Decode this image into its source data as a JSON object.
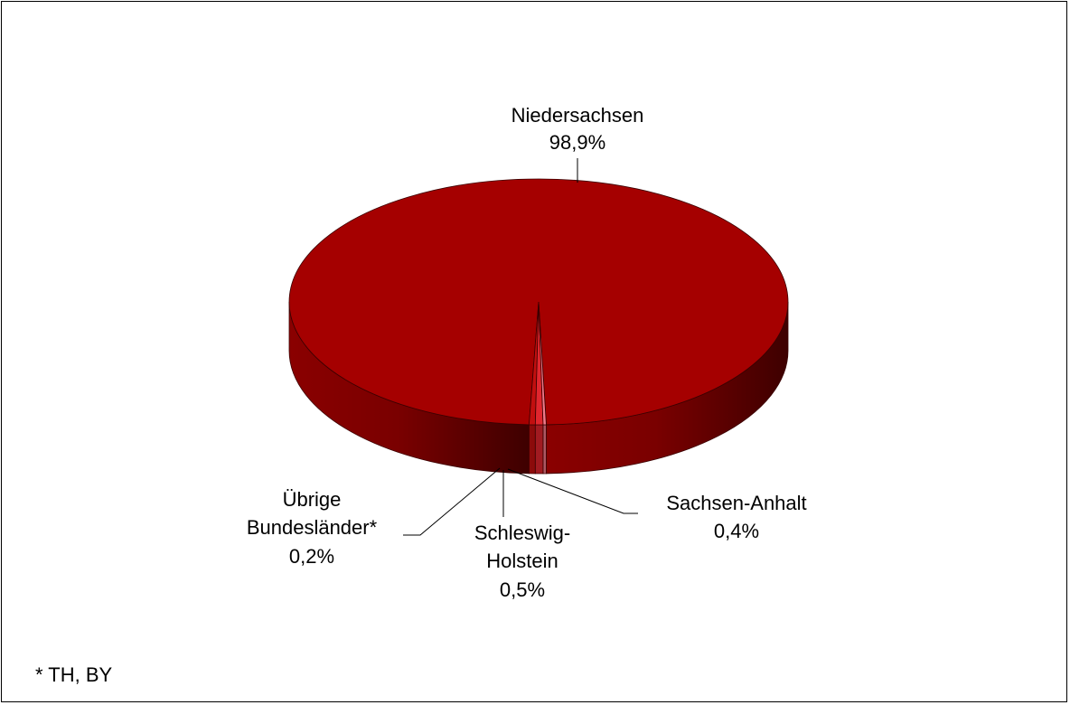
{
  "chart_data": {
    "type": "pie",
    "style": "3d",
    "slices": [
      {
        "name": "Niedersachsen",
        "value": 98.9,
        "value_label": "98,9%",
        "color": "#A50000"
      },
      {
        "name": "Sachsen-Anhalt",
        "value": 0.4,
        "value_label": "0,4%",
        "color": "#C20F0F"
      },
      {
        "name": "Schleswig-Holstein",
        "name_lines": [
          "Schleswig-",
          "Holstein"
        ],
        "value": 0.5,
        "value_label": "0,5%",
        "color": "#E0262E"
      },
      {
        "name": "Übrige Bundesländer*",
        "name_lines": [
          "Übrige",
          "Bundesländer*"
        ],
        "value": 0.2,
        "value_label": "0,2%",
        "color": "#F07A8A"
      }
    ],
    "footnote": "* TH, BY"
  }
}
